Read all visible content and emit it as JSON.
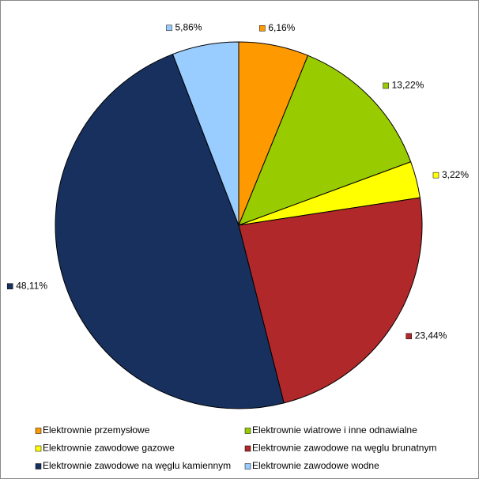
{
  "chart_data": {
    "type": "pie",
    "categories": [
      "Elektrownie przemysłowe",
      "Elektrownie wiatrowe i inne odnawialne",
      "Elektrownie zawodowe gazowe",
      "Elektrownie zawodowe na węglu brunatnym",
      "Elektrownie zawodowe na węglu kamiennym",
      "Elektrownie zawodowe wodne"
    ],
    "values": [
      6.16,
      13.22,
      3.22,
      23.44,
      48.11,
      5.86
    ],
    "value_labels": [
      "6,16%",
      "13,22%",
      "3,22%",
      "23,44%",
      "48,11%",
      "5,86%"
    ],
    "colors": [
      "#ff9900",
      "#99cc00",
      "#ffff00",
      "#b0282a",
      "#17305e",
      "#99ccff"
    ]
  }
}
